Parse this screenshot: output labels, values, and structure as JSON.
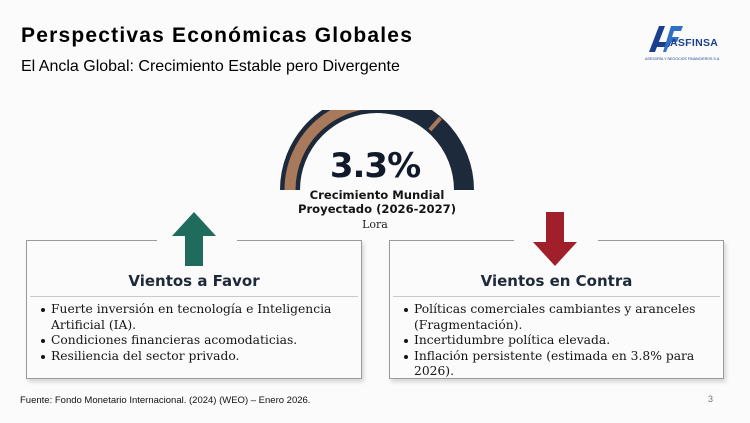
{
  "header": {
    "title": "Perspectivas Económicas Globales",
    "subtitle": "El Ancla Global: Crecimiento Estable pero Divergente"
  },
  "logo": {
    "name": "ASFINSA",
    "tagline": "ASESORÍA Y NEGOCIOS FINANCIEROS S.A."
  },
  "gauge": {
    "value_text": "3.3%",
    "label_line1": "Crecimiento Mundial",
    "label_line2": "Proyectado (2026-2027)",
    "note": "Lora",
    "fill_fraction": 0.55,
    "colors": {
      "track": "#1d2a3b",
      "fill": "#a8795a"
    }
  },
  "favor": {
    "icon": "arrow-up-icon",
    "color": "#1f6b5c",
    "title": "Vientos a Favor",
    "bullets": [
      "Fuerte inversión en tecnología e Inteligencia Artificial (IA).",
      "Condiciones financieras acomodaticias.",
      "Resiliencia del sector privado."
    ]
  },
  "contra": {
    "icon": "arrow-down-icon",
    "color": "#a01f2a",
    "title": "Vientos en Contra",
    "bullets": [
      "Políticas comerciales cambiantes y aranceles (Fragmentación).",
      "Incertidumbre política elevada.",
      "Inflación persistente (estimada en 3.8% para 2026)."
    ]
  },
  "footer": {
    "source": "Fuente: Fondo Monetario Internacional. (2024) (WEO) – Enero 2026.",
    "page": "3"
  }
}
